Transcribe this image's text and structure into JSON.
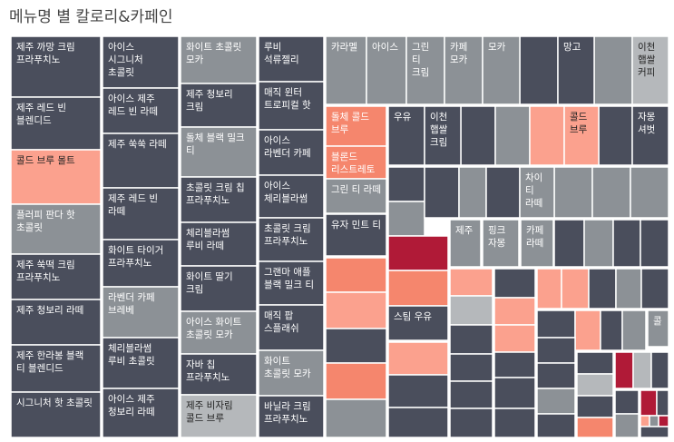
{
  "chart_data": {
    "type": "treemap",
    "title": "메뉴명 별 칼로리&카페인",
    "size_measure": "칼로리",
    "color_measure": "카페인",
    "colors": {
      "low": "#4a4e5c",
      "mid": "#8c9196",
      "light": "#b5b8bb",
      "high_light": "#fba18e",
      "high": "#f5866d",
      "max": "#b01a37"
    },
    "items": [
      {
        "name": "제주 까망 크림 프라푸치노",
        "calories": 545,
        "caffeine_level": "low"
      },
      {
        "name": "레드 빈 블렌디드",
        "calories": 530,
        "caffeine_level": "low"
      },
      {
        "name": "콜드 브루 몰트",
        "calories": 510,
        "caffeine_level": "high_light"
      },
      {
        "name": "플러피 판다 핫 초콜릿",
        "calories": 495,
        "caffeine_level": "mid"
      },
      {
        "name": "제주 쑥떡 크림 프라푸치노",
        "calories": 490,
        "caffeine_level": "low"
      },
      {
        "name": "제주 청보리 라떼",
        "calories": 455,
        "caffeine_level": "low"
      },
      {
        "name": "제주 한라봉 블랙 티 블렌디드",
        "calories": 440,
        "caffeine_level": "low"
      },
      {
        "name": "시그니처 핫 초콜릿",
        "calories": 425,
        "caffeine_level": "low"
      },
      {
        "name": "아이스 시그니처 초콜릿",
        "calories": 400,
        "caffeine_level": "low"
      },
      {
        "name": "아이스 제주 레드 빈 라떼",
        "calories": 375,
        "caffeine_level": "low"
      },
      {
        "name": "제주 쑥쑥 라떼",
        "calories": 370,
        "caffeine_level": "low"
      },
      {
        "name": "제주 레드 빈 라떼",
        "calories": 365,
        "caffeine_level": "low"
      },
      {
        "name": "화이트 타이거 프라푸치노",
        "calories": 360,
        "caffeine_level": "low"
      },
      {
        "name": "라벤더 카페 브레베",
        "calories": 355,
        "caffeine_level": "mid"
      },
      {
        "name": "체리블라썸 루비 초콜릿",
        "calories": 345,
        "caffeine_level": "low"
      },
      {
        "name": "아이스 제주 청보리 라떼",
        "calories": 340,
        "caffeine_level": "low"
      },
      {
        "name": "화이트 초콜릿 모카",
        "calories": 335,
        "caffeine_level": "mid"
      },
      {
        "name": "제주 청보리 크림",
        "calories": 330,
        "caffeine_level": "low"
      },
      {
        "name": "돌체 블랙 밀크 티",
        "calories": 325,
        "caffeine_level": "mid"
      },
      {
        "name": "초콜릿 크림 칩 프라푸치노",
        "calories": 320,
        "caffeine_level": "low"
      },
      {
        "name": "체리블라썸 루비 라떼",
        "calories": 315,
        "caffeine_level": "low"
      },
      {
        "name": "화이트 딸기 크림",
        "calories": 310,
        "caffeine_level": "low"
      },
      {
        "name": "아이스 화이트 초콜릿 모카",
        "calories": 305,
        "caffeine_level": "mid"
      },
      {
        "name": "자바 칩 프라푸치노",
        "calories": 300,
        "caffeine_level": "low"
      },
      {
        "name": "제주 비자림 콜드 브루",
        "calories": 295,
        "caffeine_level": "light"
      },
      {
        "name": "루비 석류젤리",
        "calories": 290,
        "caffeine_level": "low"
      },
      {
        "name": "매직 윈터 트로피컬 핫",
        "calories": 285,
        "caffeine_level": "low"
      },
      {
        "name": "아이스 라벤더 카페",
        "calories": 280,
        "caffeine_level": "mid"
      },
      {
        "name": "아이스 체리블라썸",
        "calories": 275,
        "caffeine_level": "low"
      },
      {
        "name": "초콜릿 크림 프라푸치노",
        "calories": 270,
        "caffeine_level": "low"
      },
      {
        "name": "그랜마 애플 블랙 밀크 티",
        "calories": 265,
        "caffeine_level": "low"
      },
      {
        "name": "매직 팝 스플래쉬",
        "calories": 260,
        "caffeine_level": "low"
      },
      {
        "name": "화이트 초콜릿 모카",
        "calories": 255,
        "caffeine_level": "mid"
      },
      {
        "name": "바닐라 크림 프라푸치노",
        "calories": 250,
        "caffeine_level": "low"
      },
      {
        "name": "카라멜",
        "calories": 200,
        "caffeine_level": "mid"
      },
      {
        "name": "아이스",
        "calories": 200,
        "caffeine_level": "mid"
      },
      {
        "name": "그린 티 크림",
        "calories": 170,
        "caffeine_level": "mid"
      },
      {
        "name": "카페 모카",
        "calories": 170,
        "caffeine_level": "mid"
      },
      {
        "name": "모카",
        "calories": 170,
        "caffeine_level": "mid"
      },
      {
        "name": "망고",
        "calories": 170,
        "caffeine_level": "low"
      },
      {
        "name": "이천 햅쌀 커피",
        "calories": 150,
        "caffeine_level": "light"
      },
      {
        "name": "돌체 콜드 브루",
        "calories": 190,
        "caffeine_level": "high"
      },
      {
        "name": "블론드 리스트레토",
        "calories": 150,
        "caffeine_level": "high"
      },
      {
        "name": "그린 티 라떼",
        "calories": 150,
        "caffeine_level": "mid"
      },
      {
        "name": "유자 민트 티",
        "calories": 150,
        "caffeine_level": "low"
      },
      {
        "name": "우유",
        "calories": 150,
        "caffeine_level": "low"
      },
      {
        "name": "이천 햅쌀 크림",
        "calories": 150,
        "caffeine_level": "low"
      },
      {
        "name": "콜드 브루",
        "calories": 140,
        "caffeine_level": "high_light"
      },
      {
        "name": "자몽 셔벗",
        "calories": 130,
        "caffeine_level": "low"
      },
      {
        "name": "차이 티 라떼",
        "calories": 110,
        "caffeine_level": "mid"
      },
      {
        "name": "제주",
        "calories": 90,
        "caffeine_level": "mid"
      },
      {
        "name": "핑크 자몽",
        "calories": 90,
        "caffeine_level": "mid"
      },
      {
        "name": "카페 라떼",
        "calories": 90,
        "caffeine_level": "mid"
      },
      {
        "name": "스팀 우유",
        "calories": 90,
        "caffeine_level": "low"
      },
      {
        "name": "콜",
        "calories": 40,
        "caffeine_level": "mid"
      }
    ]
  }
}
